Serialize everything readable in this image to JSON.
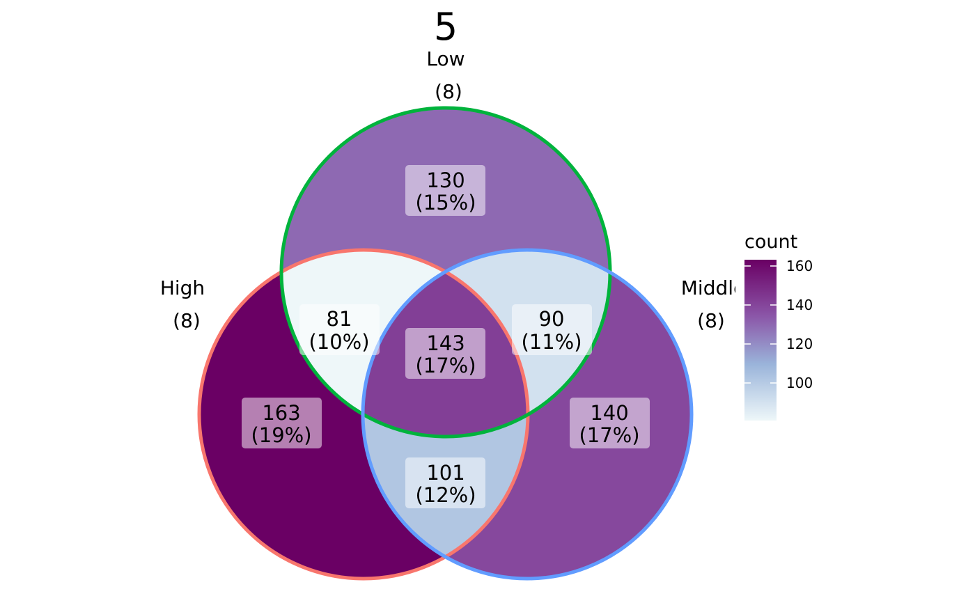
{
  "title": "5",
  "sets": [
    {
      "name": "Low",
      "size": "(8)",
      "stroke": "#00B33C"
    },
    {
      "name": "High",
      "size": "(8)",
      "stroke": "#F8766D"
    },
    {
      "name": "Middle",
      "size": "(8)",
      "stroke": "#619CFF"
    }
  ],
  "regions": [
    {
      "id": "low-only",
      "sets": [
        "Low"
      ],
      "count": "130",
      "percent": "(15%)",
      "value": 130
    },
    {
      "id": "high-only",
      "sets": [
        "High"
      ],
      "count": "163",
      "percent": "(19%)",
      "value": 163
    },
    {
      "id": "middle-only",
      "sets": [
        "Middle"
      ],
      "count": "140",
      "percent": "(17%)",
      "value": 140
    },
    {
      "id": "low-high",
      "sets": [
        "Low",
        "High"
      ],
      "count": "81",
      "percent": "(10%)",
      "value": 81
    },
    {
      "id": "low-middle",
      "sets": [
        "Low",
        "Middle"
      ],
      "count": "90",
      "percent": "(11%)",
      "value": 90
    },
    {
      "id": "high-middle",
      "sets": [
        "High",
        "Middle"
      ],
      "count": "101",
      "percent": "(12%)",
      "value": 101
    },
    {
      "id": "all-three",
      "sets": [
        "Low",
        "High",
        "Middle"
      ],
      "count": "143",
      "percent": "(17%)",
      "value": 143
    }
  ],
  "legend": {
    "title": "count",
    "ticks": [
      "160",
      "140",
      "120",
      "100"
    ],
    "gradient": [
      "#6A0064",
      "#8B56A8",
      "#9AB4DA",
      "#EEF7F9"
    ]
  },
  "chart_data": {
    "type": "venn",
    "title": "5",
    "sets": [
      "Low",
      "High",
      "Middle"
    ],
    "set_sizes": [
      8,
      8,
      8
    ],
    "regions": [
      {
        "sets": [
          "Low"
        ],
        "count": 130,
        "percent": 15
      },
      {
        "sets": [
          "High"
        ],
        "count": 163,
        "percent": 19
      },
      {
        "sets": [
          "Middle"
        ],
        "count": 140,
        "percent": 17
      },
      {
        "sets": [
          "Low",
          "High"
        ],
        "count": 81,
        "percent": 10
      },
      {
        "sets": [
          "Low",
          "Middle"
        ],
        "count": 90,
        "percent": 11
      },
      {
        "sets": [
          "High",
          "Middle"
        ],
        "count": 101,
        "percent": 12
      },
      {
        "sets": [
          "Low",
          "High",
          "Middle"
        ],
        "count": 143,
        "percent": 17
      }
    ],
    "legend": {
      "title": "count",
      "ticks": [
        160,
        140,
        120,
        100
      ],
      "range": [
        81,
        163
      ]
    }
  }
}
